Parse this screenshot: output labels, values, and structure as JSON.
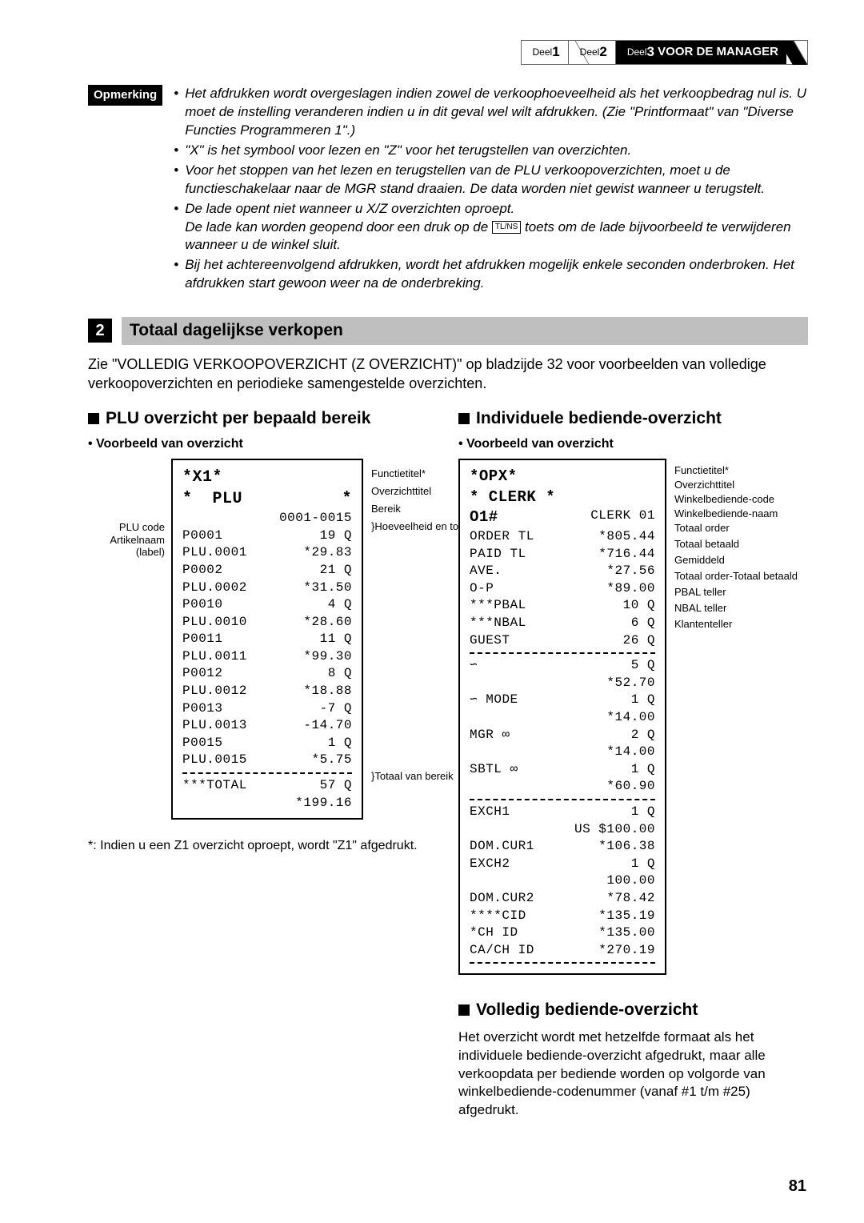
{
  "breadcrumb": {
    "part1_label": "Deel",
    "part1_num": "1",
    "part2_label": "Deel",
    "part2_num": "2",
    "part3_label": "Deel",
    "part3_num": "3",
    "part3_title": "VOOR DE MANAGER"
  },
  "note": {
    "label": "Opmerking",
    "items": [
      "Het afdrukken wordt overgeslagen indien zowel de verkoophoeveelheid als het verkoopbedrag nul is. U moet de instelling veranderen indien u in dit geval wel wilt afdrukken. (Zie \"Printformaat\" van \"Diverse Functies Programmeren 1\".)",
      "\"X\" is het symbool voor lezen en \"Z\" voor het terugstellen van overzichten.",
      "Voor het stoppen van het lezen en terugstellen van de PLU verkoopoverzichten, moet u de functieschakelaar naar de MGR stand draaien. De data worden niet gewist wanneer u terugstelt.",
      "De lade opent niet wanneer u X/Z overzichten oproept.",
      "Bij het achtereenvolgend afdrukken, wordt het afdrukken mogelijk enkele seconden onderbroken. Het afdrukken start gewoon weer na de onderbreking."
    ],
    "item3_line2a": "De lade kan worden geopend door een druk op de ",
    "item3_tlns": "TL/NS",
    "item3_line2b": " toets om de lade bijvoorbeeld te verwijderen wanneer u de winkel sluit."
  },
  "section": {
    "num": "2",
    "title": "Totaal dagelijkse verkopen"
  },
  "intro": "Zie \"VOLLEDIG VERKOOPOVERZICHT (Z OVERZICHT)\" op bladzijde 32 voor voorbeelden van volledige verkoopoverzichten en periodieke samengestelde overzichten.",
  "left": {
    "heading": "PLU overzicht per bepaald bereik",
    "sub": "• Voorbeeld van overzicht",
    "anno_left": [
      "PLU code",
      "Artikelnaam",
      "(label)"
    ],
    "anno_right": {
      "func": "Functietitel*",
      "overz": "Overzichttitel",
      "bereik": "Bereik",
      "hoev": "Hoeveelheid en totaal verkopen",
      "totaal": "Totaal van bereik"
    },
    "receipt": {
      "head1": "*X1*",
      "head2l": "*  PLU",
      "head2r": "*",
      "range": "0001-0015",
      "rows": [
        [
          "P0001",
          "19 Q"
        ],
        [
          "PLU.0001",
          "*29.83"
        ],
        [
          "P0002",
          "21 Q"
        ],
        [
          "PLU.0002",
          "*31.50"
        ],
        [
          "P0010",
          "4 Q"
        ],
        [
          "PLU.0010",
          "*28.60"
        ],
        [
          "P0011",
          "11 Q"
        ],
        [
          "PLU.0011",
          "*99.30"
        ],
        [
          "P0012",
          "8 Q"
        ],
        [
          "PLU.0012",
          "*18.88"
        ],
        [
          "P0013",
          "-7 Q"
        ],
        [
          "PLU.0013",
          "-14.70"
        ],
        [
          "P0015",
          "1 Q"
        ],
        [
          "PLU.0015",
          "*5.75"
        ]
      ],
      "tot_l": "***TOTAL",
      "tot_q": "57 Q",
      "tot_v": "*199.16"
    },
    "footnote": "*:  Indien u een Z1 overzicht oproept, wordt \"Z1\" afgedrukt."
  },
  "right": {
    "heading": "Individuele bediende-overzicht",
    "sub": "• Voorbeeld van overzicht",
    "anno": {
      "func": "Functietitel*",
      "overz": "Overzichttitel",
      "code": "Winkelbediende-code",
      "naam": "Winkelbediende-naam",
      "order": "Totaal order",
      "paid": "Totaal betaald",
      "gem": "Gemiddeld",
      "op": "Totaal order-Totaal betaald",
      "pbal": "PBAL teller",
      "nbal": "NBAL teller",
      "klant": "Klantenteller"
    },
    "receipt": {
      "head1": "*OPX*",
      "head2": "* CLERK *",
      "line_o1": [
        "O1#",
        "CLERK 01"
      ],
      "rows1": [
        [
          "ORDER TL",
          "*805.44"
        ],
        [
          "PAID TL",
          "*716.44"
        ],
        [
          "AVE.",
          "*27.56"
        ],
        [
          "O-P",
          "*89.00"
        ],
        [
          "***PBAL",
          "10 Q"
        ],
        [
          "***NBAL",
          "6 Q"
        ],
        [
          "GUEST",
          "26 Q"
        ]
      ],
      "rows2": [
        [
          "∽",
          "5 Q"
        ],
        [
          "",
          "*52.70"
        ],
        [
          "∽ MODE",
          "1 Q"
        ],
        [
          "",
          "*14.00"
        ],
        [
          "MGR ∞",
          "2 Q"
        ],
        [
          "",
          "*14.00"
        ],
        [
          "SBTL ∞",
          "1 Q"
        ],
        [
          "",
          "*60.90"
        ]
      ],
      "rows3": [
        [
          "EXCH1",
          "1 Q"
        ],
        [
          "",
          "US $100.00"
        ],
        [
          "DOM.CUR1",
          "*106.38"
        ],
        [
          "EXCH2",
          "1 Q"
        ],
        [
          "",
          "100.00"
        ],
        [
          "DOM.CUR2",
          "*78.42"
        ],
        [
          "****CID",
          "*135.19"
        ],
        [
          "*CH ID",
          "*135.00"
        ],
        [
          "CA/CH ID",
          "*270.19"
        ]
      ]
    },
    "bottom_heading": "Volledig bediende-overzicht",
    "bottom_text": "Het overzicht wordt met hetzelfde formaat als het individuele bediende-overzicht afgedrukt, maar alle verkoopdata per bediende worden op volgorde van winkelbediende-codenummer (vanaf #1 t/m #25) afgedrukt."
  },
  "pagenum": "81",
  "colors": {
    "section_bar": "#bfbfbf",
    "black": "#000000"
  }
}
